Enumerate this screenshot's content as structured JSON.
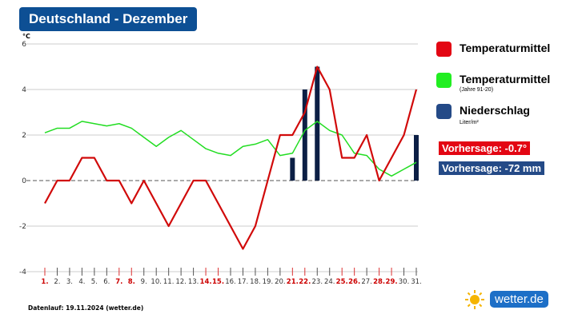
{
  "title": "Deutschland - Dezember",
  "chart_data": {
    "type": "line+bar",
    "ylabel": "°C",
    "ylim": [
      -4,
      6
    ],
    "yticks": [
      -4,
      -2,
      0,
      2,
      4,
      6
    ],
    "grid": true,
    "categories": [
      "1.",
      "2.",
      "3.",
      "4.",
      "5.",
      "6.",
      "7.",
      "8.",
      "9.",
      "10.",
      "11.",
      "12.",
      "13.",
      "14.",
      "15.",
      "16.",
      "17.",
      "18.",
      "19.",
      "20.",
      "21.",
      "22.",
      "23.",
      "24.",
      "25.",
      "26.",
      "27.",
      "28.",
      "29.",
      "30.",
      "31."
    ],
    "highlighted_days": [
      1,
      7,
      8,
      14,
      15,
      21,
      22,
      25,
      26,
      28,
      29
    ],
    "series": [
      {
        "name": "Temperaturmittel",
        "type": "line",
        "color": "#d10a0a",
        "values": [
          -1,
          0,
          0,
          1,
          1,
          0,
          0,
          -1,
          0,
          -1,
          -2,
          -1,
          0,
          0,
          -1,
          -2,
          -3,
          -2,
          0,
          2,
          2,
          3,
          5,
          4,
          1,
          1,
          2,
          0,
          1,
          2,
          4
        ]
      },
      {
        "name": "Temperaturmittel",
        "note": "(Jahre 91-20)",
        "type": "line",
        "color": "#22dd22",
        "values": [
          2.1,
          2.3,
          2.3,
          2.6,
          2.5,
          2.4,
          2.5,
          2.3,
          1.9,
          1.5,
          1.9,
          2.2,
          1.8,
          1.4,
          1.2,
          1.1,
          1.5,
          1.6,
          1.8,
          1.1,
          1.2,
          2.2,
          2.6,
          2.2,
          2.0,
          1.2,
          1.1,
          0.5,
          0.2,
          0.5,
          0.8
        ]
      },
      {
        "name": "Niederschlag",
        "note": "Liter/m²",
        "type": "bar",
        "color": "#0c1f45",
        "values": {
          "21": 1,
          "22": 4,
          "23": 5,
          "31": 2
        }
      }
    ],
    "legend_position": "right"
  },
  "legend": {
    "red": "Temperaturmittel",
    "green": "Temperaturmittel",
    "green_sub": "(Jahre 91-20)",
    "blue": "Niederschlag",
    "blue_sub": "Liter/m²"
  },
  "forecast": {
    "temp": "Vorhersage: -0.7°",
    "precip": "Vorhersage: -72 mm"
  },
  "colors": {
    "title_bg": "#0d4f94",
    "red": "#e30613",
    "green": "#22ee22",
    "blue": "#244a87"
  },
  "footer": {
    "run": "Datenlauf: 19.11.2024 (wetter.de)",
    "logo": "wetter.de"
  }
}
